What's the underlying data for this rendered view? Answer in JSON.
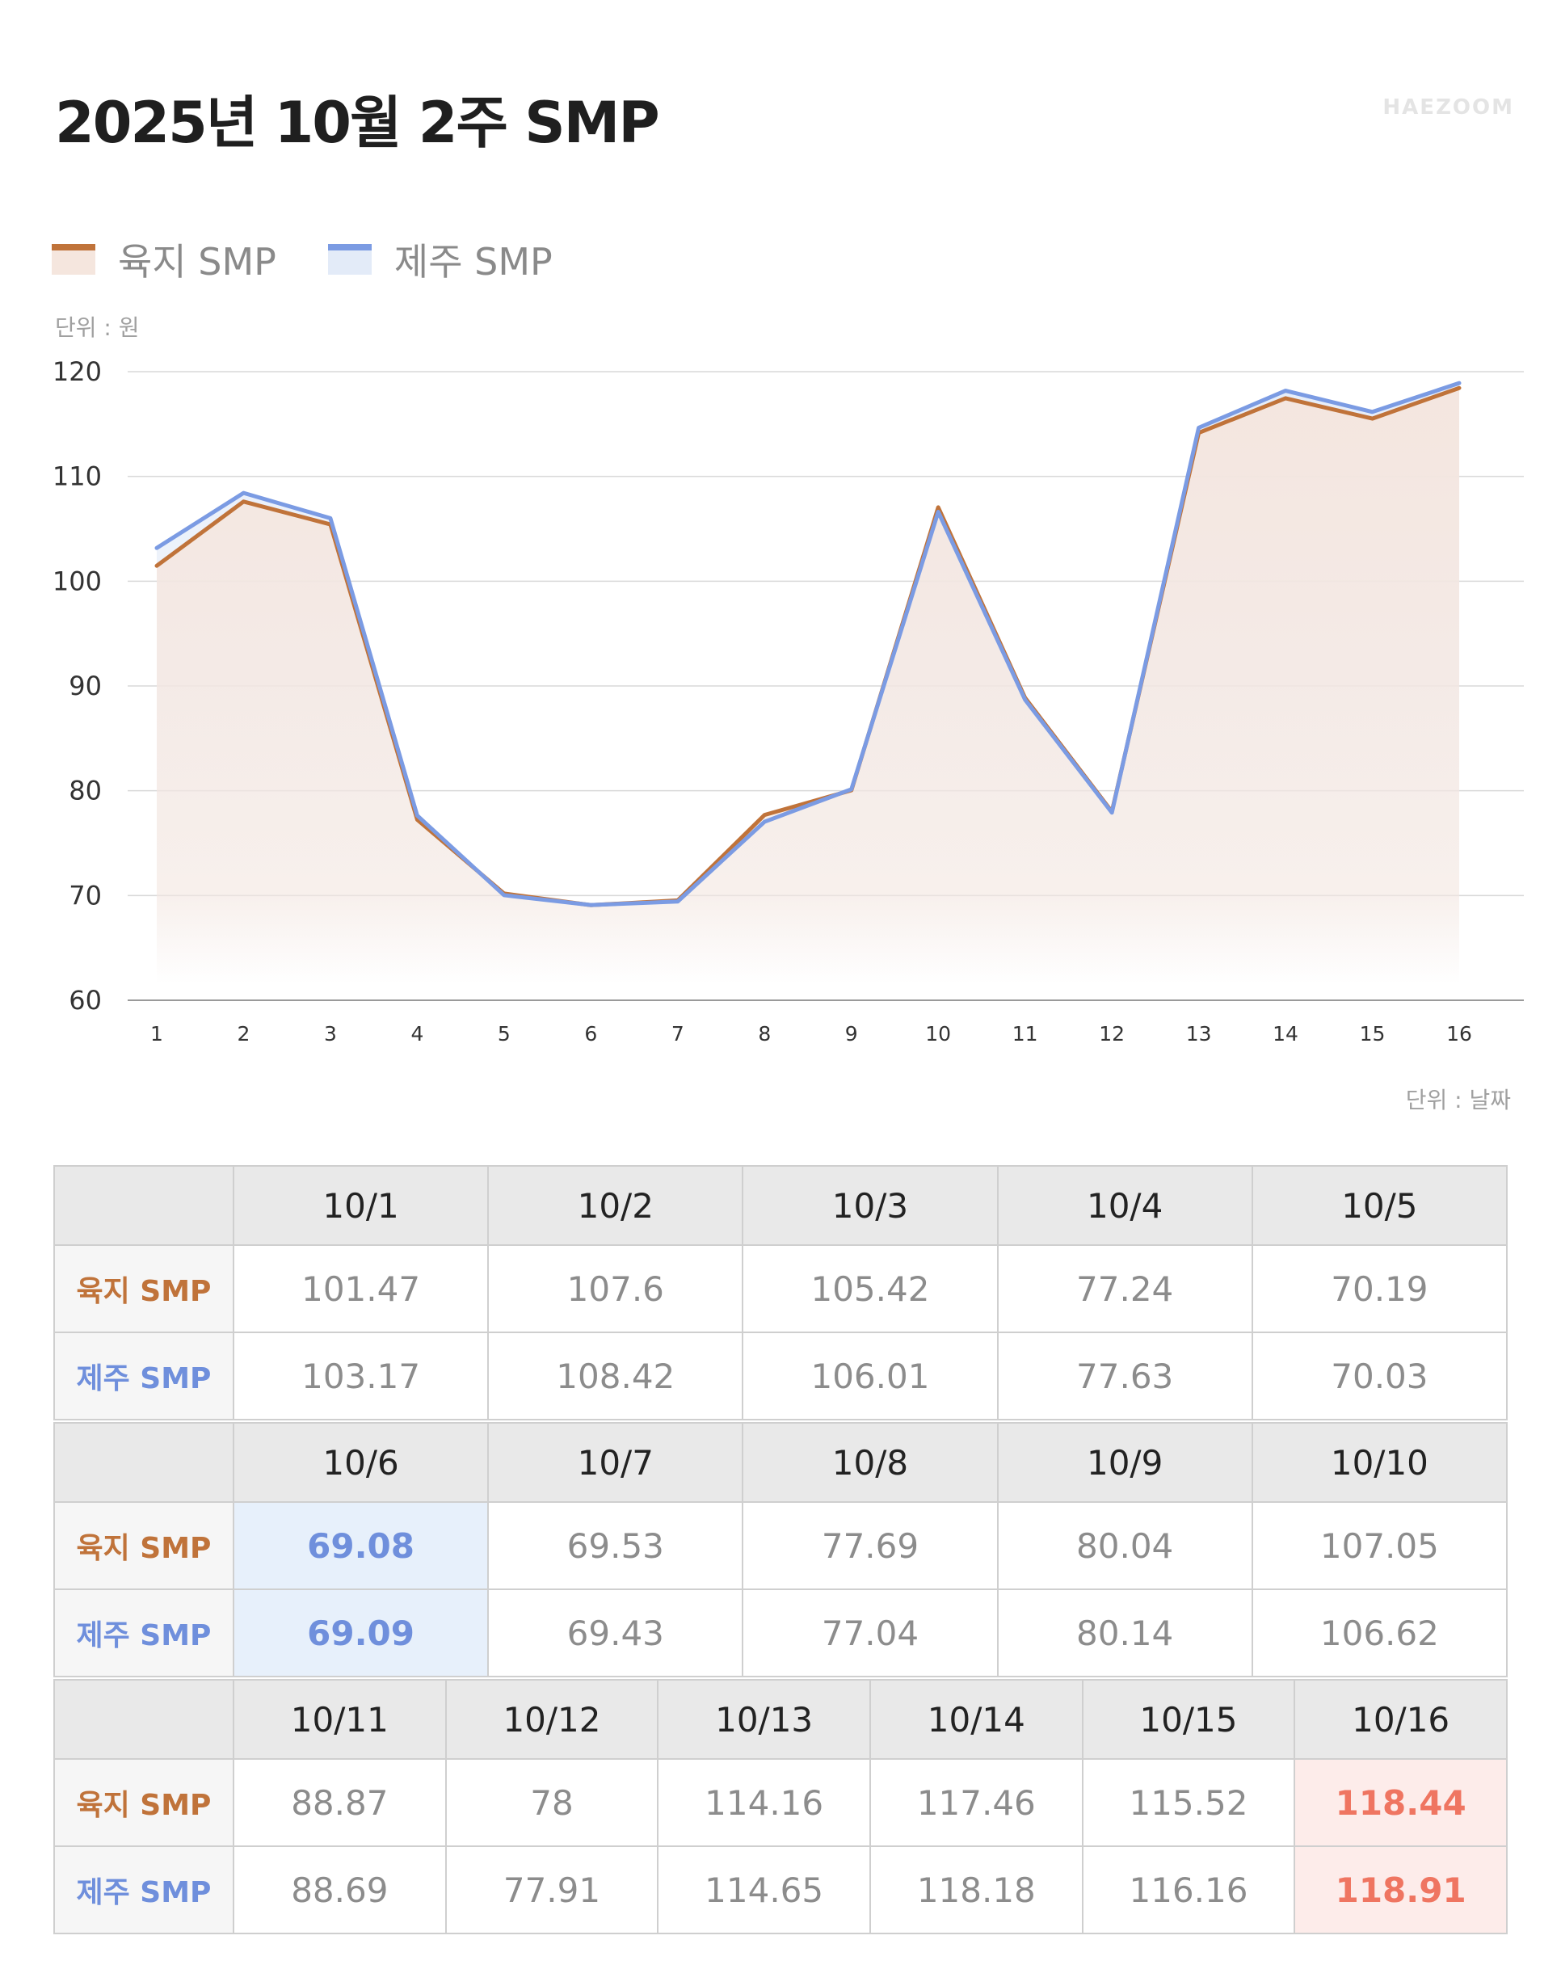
{
  "title": "2025년 10월 2주 SMP",
  "brand": "HAEZOOM",
  "colors": {
    "land": "#c0733a",
    "land_fill": "#f5e6de",
    "jeju": "#7b9be3",
    "jeju_fill": "#e3ebf8",
    "min_highlight_bg": "#e7f0fb",
    "max_highlight_bg": "#fdecea",
    "max_highlight_text": "#ef7561"
  },
  "chart_data": {
    "type": "area",
    "legend": {
      "placement": "top-left"
    },
    "grid": true,
    "ylim": [
      60,
      120
    ],
    "yticks": [
      60,
      70,
      80,
      90,
      100,
      110,
      120
    ],
    "y_unit_label": "단위 : 원",
    "x_unit_label": "단위 : 날짜",
    "x": [
      "1",
      "2",
      "3",
      "4",
      "5",
      "6",
      "7",
      "8",
      "9",
      "10",
      "11",
      "12",
      "13",
      "14",
      "15",
      "16"
    ],
    "series": [
      {
        "name": "육지 SMP",
        "values": [
          101.47,
          107.6,
          105.42,
          77.24,
          70.19,
          69.08,
          69.53,
          77.69,
          80.04,
          107.05,
          88.87,
          78,
          114.16,
          117.46,
          115.52,
          118.44
        ]
      },
      {
        "name": "제주 SMP",
        "values": [
          103.17,
          108.42,
          106.01,
          77.63,
          70.03,
          69.09,
          69.43,
          77.04,
          80.14,
          106.62,
          88.69,
          77.91,
          114.65,
          118.18,
          116.16,
          118.91
        ]
      }
    ]
  },
  "table": {
    "row_labels": {
      "land": "육지 SMP",
      "jeju": "제주 SMP"
    },
    "blocks": [
      {
        "dates": [
          "10/1",
          "10/2",
          "10/3",
          "10/4",
          "10/5"
        ],
        "land": [
          "101.47",
          "107.6",
          "105.42",
          "77.24",
          "70.19"
        ],
        "jeju": [
          "103.17",
          "108.42",
          "106.01",
          "77.63",
          "70.03"
        ]
      },
      {
        "dates": [
          "10/6",
          "10/7",
          "10/8",
          "10/9",
          "10/10"
        ],
        "land": [
          "69.08",
          "69.53",
          "77.69",
          "80.04",
          "107.05"
        ],
        "jeju": [
          "69.09",
          "69.43",
          "77.04",
          "80.14",
          "106.62"
        ]
      },
      {
        "dates": [
          "10/11",
          "10/12",
          "10/13",
          "10/14",
          "10/15",
          "10/16"
        ],
        "land": [
          "88.87",
          "78",
          "114.16",
          "117.46",
          "115.52",
          "118.44"
        ],
        "jeju": [
          "88.69",
          "77.91",
          "114.65",
          "118.18",
          "116.16",
          "118.91"
        ]
      }
    ]
  }
}
